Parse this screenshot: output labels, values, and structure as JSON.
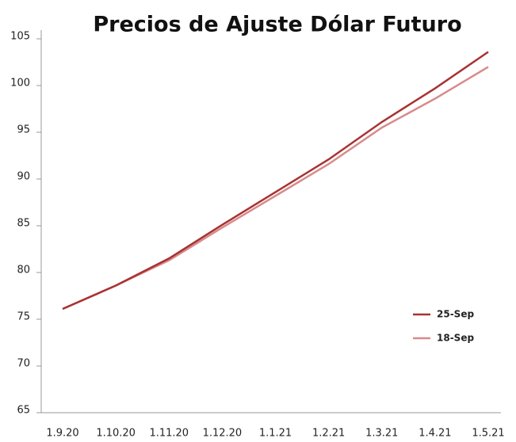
{
  "chart_data": {
    "type": "line",
    "title": "Precios de Ajuste Dólar Futuro",
    "categories": [
      "1.9.20",
      "1.10.20",
      "1.11.20",
      "1.12.20",
      "1.1.21",
      "1.2.21",
      "1.3.21",
      "1.4.21",
      "1.5.21"
    ],
    "series": [
      {
        "name": "25-Sep",
        "color": "#a83232",
        "values": [
          76.1,
          78.6,
          81.5,
          85.1,
          88.6,
          92.1,
          96.1,
          99.7,
          103.6
        ]
      },
      {
        "name": "18-Sep",
        "color": "#d88a8a",
        "values": [
          76.1,
          78.6,
          81.3,
          84.8,
          88.2,
          91.6,
          95.5,
          98.6,
          102.0
        ]
      }
    ],
    "ylim": [
      65,
      105
    ],
    "yticks": [
      65,
      70,
      75,
      80,
      85,
      90,
      95,
      100,
      105
    ],
    "grid": false,
    "legend": "lower right"
  }
}
